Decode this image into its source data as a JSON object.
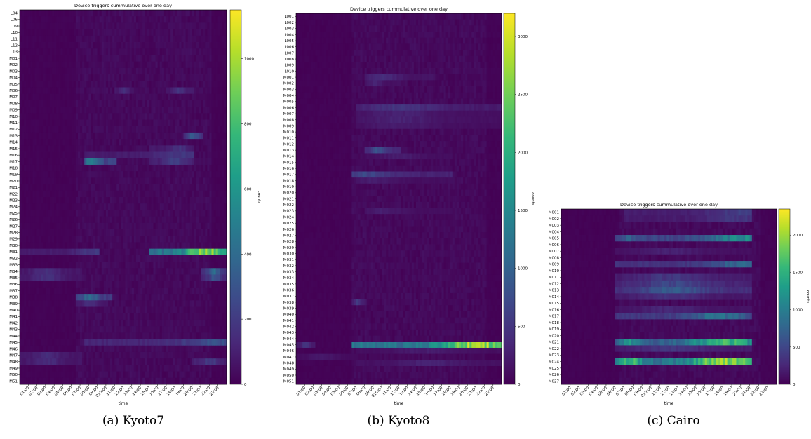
{
  "colormap": [
    "#440154",
    "#482878",
    "#3e4989",
    "#31688e",
    "#26828e",
    "#1f9e89",
    "#35b779",
    "#6ece58",
    "#b5de2b",
    "#fde725"
  ],
  "x_ticks": [
    "01:00",
    "02:00",
    "03:00",
    "04:00",
    "05:00",
    "06:00",
    "07:00",
    "08:00",
    "09:00",
    "010:00",
    "11:00",
    "12:00",
    "13:00",
    "14:00",
    "15:00",
    "16:00",
    "17:00",
    "18:00",
    "19:00",
    "20:00",
    "21:00",
    "22:00",
    "23:00"
  ],
  "chart_data": [
    {
      "type": "heatmap",
      "title": "Device triggers cummulative over one day",
      "xlabel": "time",
      "colorbar_label": "counts",
      "caption": "(a) Kyoto7",
      "vmax": 1150,
      "colorbar_ticks": [
        0,
        200,
        400,
        600,
        800,
        1000
      ],
      "rows": [
        "L04",
        "L06",
        "L09",
        "L10",
        "L11",
        "L12",
        "L13",
        "M01",
        "M02",
        "M03",
        "M04",
        "M05",
        "M06",
        "M07",
        "M08",
        "M09",
        "M10",
        "M11",
        "M12",
        "M13",
        "M14",
        "M15",
        "M16",
        "M17",
        "M18",
        "M19",
        "M20",
        "M21",
        "M22",
        "M23",
        "M24",
        "M25",
        "M26",
        "M27",
        "M28",
        "M29",
        "M30",
        "M31",
        "M32",
        "M33",
        "M34",
        "M35",
        "M36",
        "M37",
        "M38",
        "M39",
        "M40",
        "M41",
        "M42",
        "M43",
        "M44",
        "M45",
        "M46",
        "M47",
        "M48",
        "M49",
        "M50",
        "M51"
      ],
      "hot": [
        {
          "row": "M31",
          "from": 15,
          "to": 24,
          "peak": 21.3,
          "value": 1150
        },
        {
          "row": "M31",
          "from": 0,
          "to": 9,
          "peak": 8.5,
          "value": 220
        },
        {
          "row": "M17",
          "from": 7.5,
          "to": 11,
          "peak": 8.3,
          "value": 600
        },
        {
          "row": "M16",
          "from": 7.5,
          "to": 20,
          "peak": 18.5,
          "value": 220
        },
        {
          "row": "M17",
          "from": 15,
          "to": 20,
          "peak": 18,
          "value": 260
        },
        {
          "row": "M15",
          "from": 15,
          "to": 20,
          "peak": 18.3,
          "value": 200
        },
        {
          "row": "M13",
          "from": 19,
          "to": 21,
          "peak": 20,
          "value": 420
        },
        {
          "row": "M38",
          "from": 6.5,
          "to": 10.5,
          "peak": 8,
          "value": 500
        },
        {
          "row": "M39",
          "from": 6.5,
          "to": 10,
          "peak": 8,
          "value": 200
        },
        {
          "row": "M34",
          "from": 0,
          "to": 7,
          "peak": 3,
          "value": 180
        },
        {
          "row": "M34",
          "from": 21,
          "to": 24,
          "peak": 22.5,
          "value": 450
        },
        {
          "row": "M35",
          "from": 0,
          "to": 7,
          "peak": 3,
          "value": 180
        },
        {
          "row": "M35",
          "from": 21,
          "to": 24,
          "peak": 22.5,
          "value": 350
        },
        {
          "row": "M45",
          "from": 7.5,
          "to": 24,
          "peak": 22.5,
          "value": 320
        },
        {
          "row": "M47",
          "from": 0,
          "to": 7,
          "peak": 3,
          "value": 170
        },
        {
          "row": "M48",
          "from": 0,
          "to": 7,
          "peak": 3,
          "value": 170
        },
        {
          "row": "M48",
          "from": 20,
          "to": 24,
          "peak": 22,
          "value": 250
        },
        {
          "row": "M06",
          "from": 11,
          "to": 13,
          "peak": 12,
          "value": 180
        },
        {
          "row": "M06",
          "from": 17,
          "to": 20,
          "peak": 18.5,
          "value": 200
        }
      ]
    },
    {
      "type": "heatmap",
      "title": "Device triggers cummulative over one day",
      "xlabel": "time",
      "colorbar_label": "counts",
      "caption": "(b) Kyoto8",
      "vmax": 3200,
      "colorbar_ticks": [
        0,
        500,
        1000,
        1500,
        2000,
        2500,
        3000
      ],
      "rows": [
        "L001",
        "L002",
        "L003",
        "L004",
        "L005",
        "L006",
        "L007",
        "L008",
        "L009",
        "L010",
        "M001",
        "M002",
        "M003",
        "M004",
        "M005",
        "M006",
        "M007",
        "M008",
        "M009",
        "M010",
        "M011",
        "M012",
        "M013",
        "M014",
        "M015",
        "M016",
        "M017",
        "M018",
        "M019",
        "M020",
        "M021",
        "M022",
        "M023",
        "M024",
        "M025",
        "M026",
        "M027",
        "M028",
        "M029",
        "M030",
        "M031",
        "M032",
        "M033",
        "M034",
        "M035",
        "M036",
        "M037",
        "M038",
        "M039",
        "M040",
        "M041",
        "M042",
        "M043",
        "M044",
        "M045",
        "M046",
        "M047",
        "M048",
        "M049",
        "M050",
        "M051"
      ],
      "hot": [
        {
          "row": "M045",
          "from": 6.5,
          "to": 24,
          "peak": 21,
          "value": 3200
        },
        {
          "row": "M045",
          "from": 0,
          "to": 2,
          "peak": 1,
          "value": 600
        },
        {
          "row": "M017",
          "from": 6.5,
          "to": 18,
          "peak": 8,
          "value": 800
        },
        {
          "row": "M013",
          "from": 8,
          "to": 12,
          "peak": 9.5,
          "value": 900
        },
        {
          "row": "M006",
          "from": 7,
          "to": 24,
          "peak": 12,
          "value": 600
        },
        {
          "row": "M007",
          "from": 7,
          "to": 24,
          "peak": 12,
          "value": 350
        },
        {
          "row": "M008",
          "from": 7,
          "to": 24,
          "peak": 12,
          "value": 350
        },
        {
          "row": "M009",
          "from": 7,
          "to": 24,
          "peak": 12,
          "value": 300
        },
        {
          "row": "M001",
          "from": 8,
          "to": 16,
          "peak": 10,
          "value": 450
        },
        {
          "row": "M002",
          "from": 8,
          "to": 12,
          "peak": 9,
          "value": 350
        },
        {
          "row": "M038",
          "from": 6.5,
          "to": 8,
          "peak": 7,
          "value": 600
        },
        {
          "row": "M023",
          "from": 8,
          "to": 18,
          "peak": 10,
          "value": 300
        },
        {
          "row": "M018",
          "from": 7,
          "to": 18,
          "peak": 9,
          "value": 300
        },
        {
          "row": "M014",
          "from": 8,
          "to": 18,
          "peak": 12,
          "value": 300
        },
        {
          "row": "M047",
          "from": 0,
          "to": 7,
          "peak": 3,
          "value": 250
        },
        {
          "row": "M048",
          "from": 7,
          "to": 24,
          "peak": 15.5,
          "value": 350
        },
        {
          "row": "M046",
          "from": 7,
          "to": 24,
          "peak": 15.5,
          "value": 300
        }
      ]
    },
    {
      "type": "heatmap",
      "title": "Device triggers cummulative over one day",
      "xlabel": "time",
      "colorbar_label": "counts",
      "caption": "(c) Cairo",
      "vmax": 2350,
      "colorbar_ticks": [
        0,
        500,
        1000,
        1500,
        2000
      ],
      "rows": [
        "M001",
        "M002",
        "M003",
        "M004",
        "M005",
        "M006",
        "M007",
        "M008",
        "M009",
        "M010",
        "M011",
        "M012",
        "M013",
        "M014",
        "M015",
        "M016",
        "M017",
        "M018",
        "M019",
        "M020",
        "M021",
        "M022",
        "M023",
        "M024",
        "M025",
        "M026",
        "M027"
      ],
      "hot": [
        {
          "row": "M024",
          "from": 6,
          "to": 21,
          "peak": 18,
          "value": 2300
        },
        {
          "row": "M024",
          "from": 6,
          "to": 12,
          "peak": 7.5,
          "value": 1900
        },
        {
          "row": "M021",
          "from": 6,
          "to": 21,
          "peak": 18,
          "value": 1850
        },
        {
          "row": "M021",
          "from": 6,
          "to": 12,
          "peak": 7.5,
          "value": 1400
        },
        {
          "row": "M005",
          "from": 6,
          "to": 21,
          "peak": 20,
          "value": 1300
        },
        {
          "row": "M005",
          "from": 6,
          "to": 12,
          "peak": 7.5,
          "value": 800
        },
        {
          "row": "M013",
          "from": 6,
          "to": 21,
          "peak": 12.5,
          "value": 800
        },
        {
          "row": "M012",
          "from": 6,
          "to": 21,
          "peak": 12.5,
          "value": 600
        },
        {
          "row": "M017",
          "from": 6,
          "to": 21,
          "peak": 17.5,
          "value": 1000
        },
        {
          "row": "M022",
          "from": 6,
          "to": 21,
          "peak": 12,
          "value": 450
        },
        {
          "row": "M009",
          "from": 6,
          "to": 21,
          "peak": 20,
          "value": 900
        },
        {
          "row": "M001",
          "from": 7,
          "to": 21,
          "peak": 19.5,
          "value": 500
        },
        {
          "row": "M002",
          "from": 7,
          "to": 21,
          "peak": 19.5,
          "value": 450
        },
        {
          "row": "M011",
          "from": 6,
          "to": 21,
          "peak": 12,
          "value": 450
        },
        {
          "row": "M014",
          "from": 6,
          "to": 21,
          "peak": 12,
          "value": 400
        },
        {
          "row": "M016",
          "from": 6,
          "to": 21,
          "peak": 12,
          "value": 300
        },
        {
          "row": "M007",
          "from": 6,
          "to": 21,
          "peak": 12,
          "value": 250
        }
      ]
    }
  ]
}
